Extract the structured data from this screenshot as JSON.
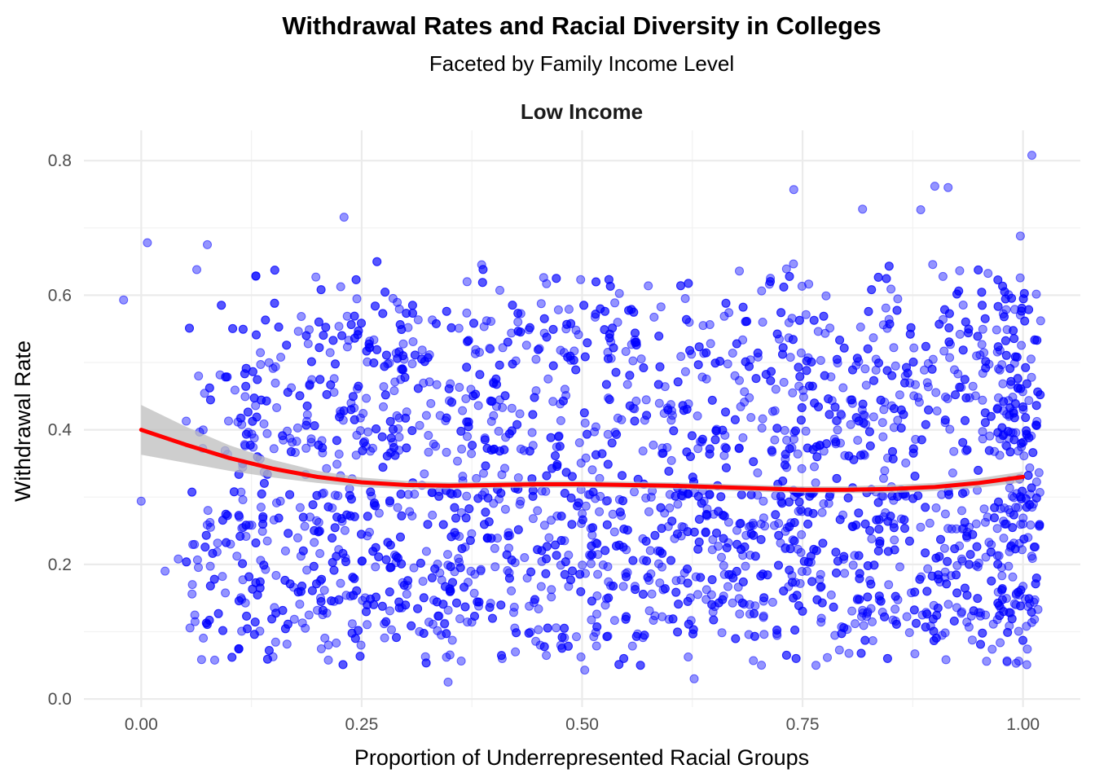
{
  "chart_data": {
    "type": "scatter",
    "title": "Withdrawal Rates and Racial Diversity in Colleges",
    "subtitle": "Faceted by Family Income Level",
    "facet_label": "Low Income",
    "xlabel": "Proportion of Underrepresented Racial Groups",
    "ylabel": "Withdrawal Rate",
    "xlim": [
      -0.065,
      1.065
    ],
    "ylim": [
      -0.012,
      0.845
    ],
    "x_ticks": [
      0.0,
      0.25,
      0.5,
      0.75,
      1.0
    ],
    "x_tick_labels": [
      "0.00",
      "0.25",
      "0.50",
      "0.75",
      "1.00"
    ],
    "y_ticks": [
      0.0,
      0.2,
      0.4,
      0.6,
      0.8
    ],
    "y_tick_labels": [
      "0.0",
      "0.2",
      "0.4",
      "0.6",
      "0.8"
    ],
    "grid": true,
    "legend": "none",
    "colors": {
      "points": "#0000ff",
      "smooth_line": "#ff0000",
      "confidence_band": "#bebebe",
      "grid": "#ebebeb"
    },
    "highlighted_points": [
      {
        "x": -0.02,
        "y": 0.593
      },
      {
        "x": 0.0,
        "y": 0.294
      },
      {
        "x": 0.007,
        "y": 0.678
      },
      {
        "x": 0.027,
        "y": 0.19
      },
      {
        "x": 0.042,
        "y": 0.208
      },
      {
        "x": 0.058,
        "y": 0.17
      },
      {
        "x": 0.061,
        "y": 0.115
      },
      {
        "x": 0.063,
        "y": 0.638
      },
      {
        "x": 0.075,
        "y": 0.675
      },
      {
        "x": 0.099,
        "y": 0.413
      },
      {
        "x": 0.23,
        "y": 0.716
      },
      {
        "x": 0.348,
        "y": 0.025
      },
      {
        "x": 0.503,
        "y": 0.043
      },
      {
        "x": 0.627,
        "y": 0.03
      },
      {
        "x": 0.74,
        "y": 0.757
      },
      {
        "x": 0.818,
        "y": 0.728
      },
      {
        "x": 0.884,
        "y": 0.727
      },
      {
        "x": 0.9,
        "y": 0.762
      },
      {
        "x": 0.915,
        "y": 0.76
      },
      {
        "x": 1.01,
        "y": 0.808
      },
      {
        "x": 0.997,
        "y": 0.688
      },
      {
        "x": 1.02,
        "y": 0.562
      },
      {
        "x": 1.017,
        "y": 0.133
      },
      {
        "x": 0.965,
        "y": 0.074
      }
    ],
    "bulk_distribution": {
      "n_points": 3000,
      "x_range": [
        0.05,
        1.02
      ],
      "y_range": [
        0.05,
        0.65
      ],
      "x_concentration_near": 1.0
    },
    "smooth": {
      "x": [
        0.0,
        0.05,
        0.1,
        0.15,
        0.2,
        0.25,
        0.3,
        0.35,
        0.4,
        0.45,
        0.5,
        0.55,
        0.6,
        0.65,
        0.7,
        0.75,
        0.8,
        0.85,
        0.9,
        0.95,
        1.0
      ],
      "y": [
        0.4,
        0.378,
        0.358,
        0.342,
        0.33,
        0.322,
        0.318,
        0.317,
        0.318,
        0.319,
        0.319,
        0.318,
        0.317,
        0.315,
        0.313,
        0.311,
        0.311,
        0.312,
        0.315,
        0.321,
        0.33
      ],
      "ci_halfwidth": [
        0.037,
        0.027,
        0.019,
        0.013,
        0.009,
        0.007,
        0.006,
        0.005,
        0.005,
        0.005,
        0.005,
        0.005,
        0.005,
        0.005,
        0.005,
        0.005,
        0.005,
        0.006,
        0.006,
        0.007,
        0.008
      ]
    }
  }
}
